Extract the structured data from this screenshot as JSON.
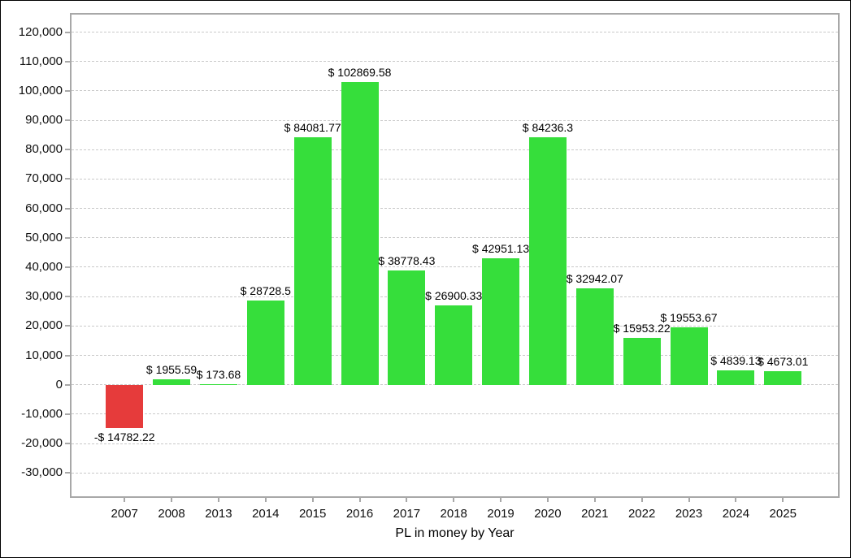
{
  "chart_data": {
    "type": "bar",
    "title": "PL in money by Year",
    "categories": [
      "2007",
      "2008",
      "2013",
      "2014",
      "2015",
      "2016",
      "2017",
      "2018",
      "2019",
      "2020",
      "2021",
      "2022",
      "2023",
      "2024",
      "2025"
    ],
    "values": [
      -14782.22,
      1955.59,
      173.68,
      28728.5,
      84081.77,
      102869.58,
      38778.43,
      26900.33,
      42951.13,
      84236.3,
      32942.07,
      15953.22,
      19553.67,
      4839.13,
      4673.01
    ],
    "bar_labels": [
      "-$ 14782.22",
      "$ 1955.59",
      "$ 173.68",
      "$ 28728.5",
      "$ 84081.77",
      "$ 102869.58",
      "$ 38778.43",
      "$ 26900.33",
      "$ 42951.13",
      "$ 84236.3",
      "$ 32942.07",
      "$ 15953.22",
      "$ 19553.67",
      "$ 4839.13",
      "$ 4673.01"
    ],
    "xlabel": "PL in money by Year",
    "ylabel": "",
    "y_axis": {
      "tick_values": [
        120000,
        110000,
        100000,
        90000,
        80000,
        70000,
        60000,
        50000,
        40000,
        30000,
        20000,
        10000,
        0,
        -10000,
        -20000,
        -30000
      ],
      "tick_labels": [
        "120,000",
        "110,000",
        "100,000",
        "90,000",
        "80,000",
        "70,000",
        "60,000",
        "50,000",
        "40,000",
        "30,000",
        "20,000",
        "10,000",
        "0",
        "-10,000",
        "-20,000",
        "-30,000"
      ],
      "ylim": [
        -38500,
        126500
      ]
    },
    "grid": {
      "horizontal": true,
      "style": "dashed"
    },
    "legend": "none",
    "colors": {
      "positive_bar": "#36de3b",
      "negative_bar": "#e63b3b",
      "gridline": "#c9c9c9",
      "axis": "#a8a8a8",
      "label_text": "#000000",
      "background": "#ffffff"
    }
  }
}
